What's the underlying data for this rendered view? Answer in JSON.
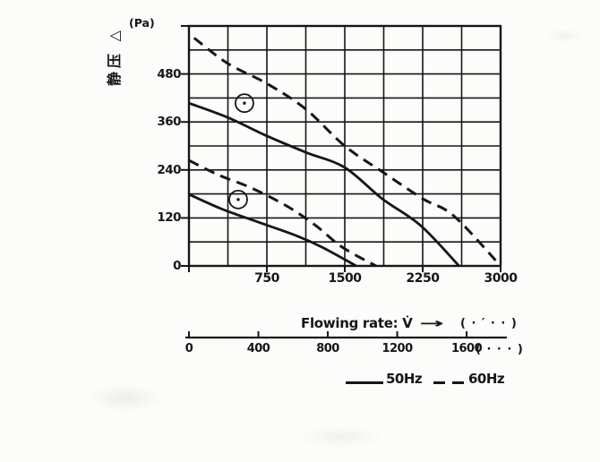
{
  "colors": {
    "ink": "#161616",
    "paper": "#fcfcfa"
  },
  "chart_data": {
    "type": "line",
    "ylabel": "静压 △",
    "y_unit": "(Pa)",
    "xlabel": "Flowing rate: V̇",
    "x_arrow": "→",
    "x_unit": "( · ′ · · )",
    "xlim": [
      0,
      3000
    ],
    "ylim": [
      0,
      600
    ],
    "x_grid_step": 375,
    "y_grid_step": 60,
    "x_ticks": [
      750,
      1500,
      2250,
      3000
    ],
    "y_ticks": [
      0,
      120,
      240,
      360,
      480
    ],
    "grid": true,
    "legend_position": "bottom",
    "series": [
      {
        "name": "50Hz-upper-curve",
        "freq": "50Hz",
        "style": "solid",
        "points": [
          [
            0,
            407
          ],
          [
            375,
            371
          ],
          [
            750,
            325
          ],
          [
            1125,
            284
          ],
          [
            1500,
            246
          ],
          [
            1860,
            168
          ],
          [
            2230,
            101
          ],
          [
            2600,
            0
          ]
        ]
      },
      {
        "name": "60Hz-upper-curve",
        "freq": "60Hz",
        "style": "dashed",
        "points": [
          [
            50,
            570
          ],
          [
            375,
            506
          ],
          [
            750,
            456
          ],
          [
            1125,
            392
          ],
          [
            1500,
            300
          ],
          [
            1875,
            233
          ],
          [
            2250,
            168
          ],
          [
            2550,
            125
          ],
          [
            3000,
            0
          ]
        ]
      },
      {
        "name": "50Hz-lower-curve",
        "freq": "50Hz",
        "style": "solid",
        "points": [
          [
            0,
            179
          ],
          [
            310,
            143
          ],
          [
            640,
            112
          ],
          [
            1030,
            76
          ],
          [
            1280,
            47
          ],
          [
            1610,
            0
          ]
        ]
      },
      {
        "name": "60Hz-lower-curve",
        "freq": "60Hz",
        "style": "dashed",
        "points": [
          [
            0,
            264
          ],
          [
            280,
            228
          ],
          [
            600,
            195
          ],
          [
            940,
            150
          ],
          [
            1220,
            101
          ],
          [
            1475,
            47
          ],
          [
            1800,
            0
          ]
        ]
      }
    ],
    "operating_point_markers": [
      {
        "x": 534,
        "y": 407
      },
      {
        "x": 474,
        "y": 166
      }
    ],
    "secondary_x_axis": {
      "ticks": [
        0,
        400,
        800,
        1200,
        1600
      ],
      "unit": "( · · · )",
      "fraction_of_plot_width_at_max": 0.891
    },
    "legend": [
      {
        "label": "50Hz",
        "style": "solid"
      },
      {
        "label": "60Hz",
        "style": "dashed"
      }
    ]
  }
}
